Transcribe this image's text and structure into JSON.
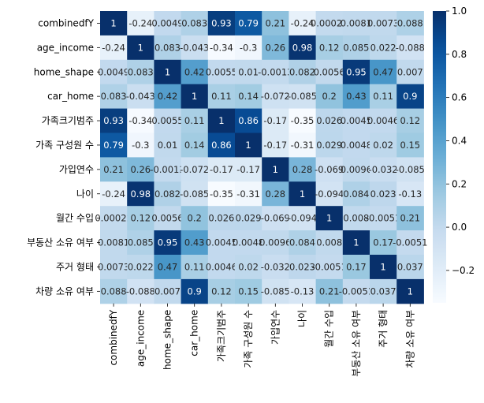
{
  "chart_data": {
    "type": "heatmap",
    "colormap": "Blues",
    "vmin": -0.35,
    "vmax": 1.0,
    "labels": [
      "combinedfY",
      "age_income",
      "home_shape",
      "car_home",
      "가족크기범주",
      "가족 구성원 수",
      "가입연수",
      "나이",
      "월간 수입",
      "부동산 소유 여부",
      "주거 형태",
      "차량 소유 여부"
    ],
    "values": [
      [
        1,
        -0.24,
        0.0049,
        0.083,
        0.93,
        0.79,
        0.21,
        -0.24,
        0.00022,
        0.0081,
        0.0073,
        0.088
      ],
      [
        -0.24,
        1,
        0.083,
        -0.043,
        -0.34,
        -0.3,
        0.26,
        0.98,
        0.12,
        0.085,
        0.022,
        -0.088
      ],
      [
        0.0049,
        0.083,
        1,
        0.42,
        0.0055,
        0.01,
        -0.0013,
        0.082,
        0.0056,
        0.95,
        0.47,
        0.007
      ],
      [
        0.083,
        -0.043,
        0.42,
        1,
        0.11,
        0.14,
        -0.072,
        -0.085,
        0.2,
        0.43,
        0.11,
        0.9
      ],
      [
        0.93,
        -0.34,
        0.0055,
        0.11,
        1,
        0.86,
        -0.17,
        -0.35,
        0.026,
        0.0045,
        0.0046,
        0.12
      ],
      [
        0.79,
        -0.3,
        0.01,
        0.14,
        0.86,
        1,
        -0.17,
        -0.31,
        0.029,
        0.0048,
        0.02,
        0.15
      ],
      [
        0.21,
        0.26,
        -0.0013,
        -0.072,
        -0.17,
        -0.17,
        1,
        0.28,
        -0.069,
        0.0096,
        -0.032,
        -0.085
      ],
      [
        -0.24,
        0.98,
        0.082,
        -0.085,
        -0.35,
        -0.31,
        0.28,
        1,
        -0.094,
        0.084,
        0.023,
        -0.13
      ],
      [
        0.00022,
        0.12,
        0.0056,
        0.2,
        0.026,
        0.029,
        -0.069,
        -0.094,
        1,
        0.008,
        -0.0051,
        0.21
      ],
      [
        0.0081,
        0.085,
        0.95,
        0.43,
        0.0045,
        0.0048,
        0.0096,
        0.084,
        0.008,
        1,
        0.17,
        -0.0051
      ],
      [
        0.0073,
        0.022,
        0.47,
        0.11,
        0.0046,
        0.02,
        -0.032,
        0.023,
        -0.0051,
        0.17,
        1,
        0.037
      ],
      [
        0.088,
        -0.088,
        0.007,
        0.9,
        0.12,
        0.15,
        -0.085,
        -0.13,
        0.21,
        -0.0051,
        0.037,
        1
      ]
    ],
    "display": [
      [
        "1",
        "-0.24",
        "0.0049",
        "0.083",
        "0.93",
        "0.79",
        "0.21",
        "-0.24",
        "0.00022",
        "0.0081",
        "0.0073",
        "0.088"
      ],
      [
        "-0.24",
        "1",
        "0.083",
        "-0.043",
        "-0.34",
        "-0.3",
        "0.26",
        "0.98",
        "0.12",
        "0.085",
        "0.022",
        "-0.088"
      ],
      [
        "0.0049",
        "0.083",
        "1",
        "0.42",
        "0.0055",
        "0.01",
        "-0.0013",
        "0.082",
        "0.0056",
        "0.95",
        "0.47",
        "0.007"
      ],
      [
        "0.083",
        "-0.043",
        "0.42",
        "1",
        "0.11",
        "0.14",
        "-0.072",
        "-0.085",
        "0.2",
        "0.43",
        "0.11",
        "0.9"
      ],
      [
        "0.93",
        "-0.34",
        "0.0055",
        "0.11",
        "1",
        "0.86",
        "-0.17",
        "-0.35",
        "0.026",
        "0.0045",
        "0.0046",
        "0.12"
      ],
      [
        "0.79",
        "-0.3",
        "0.01",
        "0.14",
        "0.86",
        "1",
        "-0.17",
        "-0.31",
        "0.029",
        "0.0048",
        "0.02",
        "0.15"
      ],
      [
        "0.21",
        "0.26",
        "-0.0013",
        "-0.072",
        "-0.17",
        "-0.17",
        "1",
        "0.28",
        "-0.069",
        "0.0096",
        "-0.032",
        "-0.085"
      ],
      [
        "-0.24",
        "0.98",
        "0.082",
        "-0.085",
        "-0.35",
        "-0.31",
        "0.28",
        "1",
        "-0.094",
        "0.084",
        "0.023",
        "-0.13"
      ],
      [
        "0.00022",
        "0.12",
        "0.0056",
        "0.2",
        "0.026",
        "0.029",
        "-0.069",
        "-0.094",
        "1",
        "0.008",
        "-0.0051",
        "0.21"
      ],
      [
        "0.0081",
        "0.085",
        "0.95",
        "0.43",
        "0.0045",
        "0.0048",
        "0.0096",
        "0.084",
        "0.008",
        "1",
        "0.17",
        "-0.0051"
      ],
      [
        "0.0073",
        "0.022",
        "0.47",
        "0.11",
        "0.0046",
        "0.02",
        "-0.032",
        "0.023",
        "-0.0051",
        "0.17",
        "1",
        "0.037"
      ],
      [
        "0.088",
        "-0.088",
        "0.007",
        "0.9",
        "0.12",
        "0.15",
        "-0.085",
        "-0.13",
        "0.21",
        "-0.0051",
        "0.037",
        "1"
      ]
    ],
    "colorbar": {
      "ticks": [
        1.0,
        0.8,
        0.6,
        0.4,
        0.2,
        0.0,
        -0.2
      ],
      "tick_labels": [
        "1.0",
        "0.8",
        "0.6",
        "0.4",
        "0.2",
        "0.0",
        "−0.2"
      ]
    }
  }
}
